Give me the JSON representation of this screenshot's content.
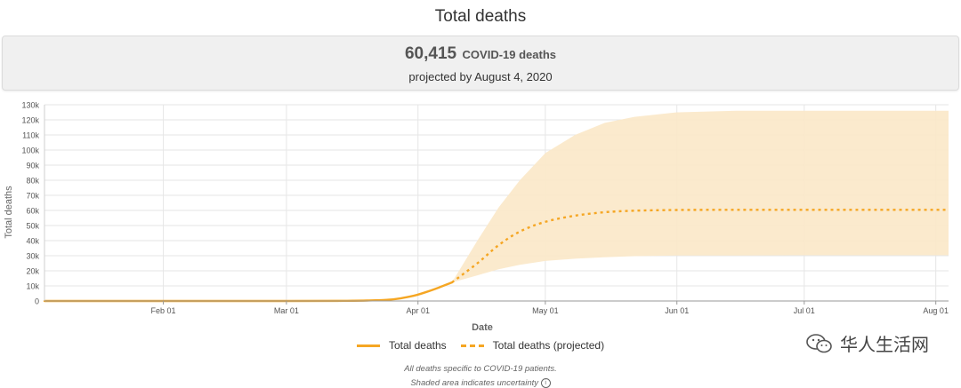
{
  "title": "Total deaths",
  "summary": {
    "value": "60,415",
    "unit": "COVID-19 deaths",
    "projected_by": "projected by August 4, 2020"
  },
  "chart_data": {
    "type": "line",
    "xlabel": "Date",
    "ylabel": "Total deaths",
    "xlim": [
      "2020-01-04",
      "2020-08-04"
    ],
    "ylim": [
      0,
      130000
    ],
    "y_ticks": [
      0,
      10000,
      20000,
      30000,
      40000,
      50000,
      60000,
      70000,
      80000,
      90000,
      100000,
      110000,
      120000,
      130000
    ],
    "y_tick_labels": [
      "0",
      "10k",
      "20k",
      "30k",
      "40k",
      "50k",
      "60k",
      "70k",
      "80k",
      "90k",
      "100k",
      "110k",
      "120k",
      "130k"
    ],
    "x_ticks": [
      "2020-02-01",
      "2020-03-01",
      "2020-04-01",
      "2020-05-01",
      "2020-06-01",
      "2020-07-01",
      "2020-08-01"
    ],
    "x_tick_labels": [
      "Feb 01",
      "Mar 01",
      "Apr 01",
      "May 01",
      "Jun 01",
      "Jul 01",
      "Aug 01"
    ],
    "grid": true,
    "legend_position": "bottom",
    "series": [
      {
        "name": "Total deaths",
        "style": "solid",
        "color": "#f5a623",
        "x": [
          "2020-01-04",
          "2020-03-01",
          "2020-03-15",
          "2020-03-20",
          "2020-03-25",
          "2020-03-28",
          "2020-03-31",
          "2020-04-03",
          "2020-04-06",
          "2020-04-09"
        ],
        "y": [
          0,
          0,
          100,
          300,
          800,
          1800,
          3500,
          6000,
          9000,
          12300
        ]
      },
      {
        "name": "Total deaths (projected)",
        "style": "dashed",
        "color": "#f5a623",
        "x": [
          "2020-04-09",
          "2020-04-15",
          "2020-04-20",
          "2020-04-25",
          "2020-05-01",
          "2020-05-08",
          "2020-05-15",
          "2020-05-22",
          "2020-06-01",
          "2020-06-15",
          "2020-07-01",
          "2020-07-15",
          "2020-08-04"
        ],
        "y": [
          12300,
          25000,
          37000,
          46000,
          52500,
          56500,
          58800,
          59800,
          60300,
          60400,
          60415,
          60415,
          60415
        ]
      }
    ],
    "uncertainty_band": {
      "color": "#fbe8c8",
      "x": [
        "2020-04-09",
        "2020-04-15",
        "2020-04-20",
        "2020-04-25",
        "2020-05-01",
        "2020-05-08",
        "2020-05-15",
        "2020-05-22",
        "2020-06-01",
        "2020-06-15",
        "2020-07-01",
        "2020-07-15",
        "2020-08-04"
      ],
      "lower": [
        12300,
        17000,
        21000,
        24000,
        26500,
        28000,
        29000,
        29700,
        30100,
        30200,
        30300,
        30300,
        30300
      ],
      "upper": [
        12300,
        40000,
        62000,
        80000,
        98000,
        110000,
        118000,
        122000,
        125000,
        126000,
        126000,
        126000,
        126000
      ]
    }
  },
  "legend": {
    "items": [
      {
        "label": "Total deaths"
      },
      {
        "label": "Total deaths (projected)"
      }
    ]
  },
  "notes": {
    "line1": "All deaths specific to COVID-19 patients.",
    "line2": "Shaded area indicates uncertainty",
    "info_icon": "info-icon"
  },
  "watermark": {
    "text": "华人生活网",
    "icon": "wechat-icon"
  }
}
